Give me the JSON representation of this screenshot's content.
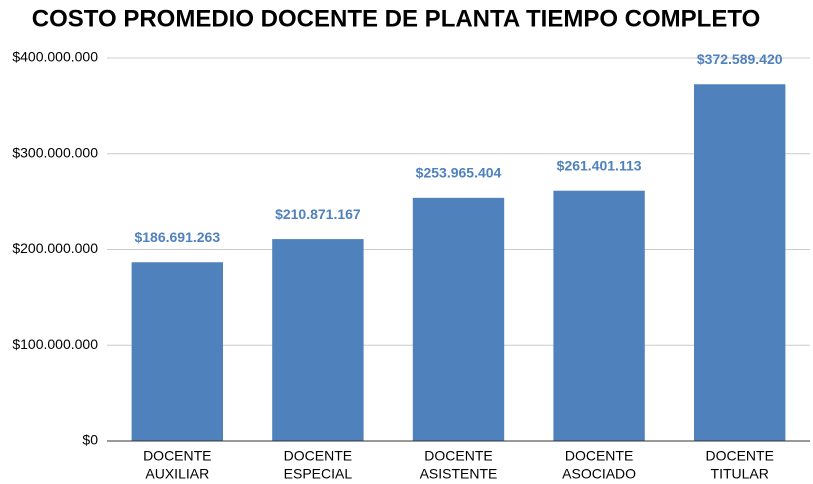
{
  "chart_data": {
    "type": "bar",
    "title": "COSTO PROMEDIO DOCENTE DE PLANTA TIEMPO COMPLETO",
    "categories": [
      [
        "DOCENTE",
        "AUXILIAR"
      ],
      [
        "DOCENTE",
        "ESPECIAL"
      ],
      [
        "DOCENTE",
        "ASISTENTE"
      ],
      [
        "DOCENTE",
        "ASOCIADO"
      ],
      [
        "DOCENTE",
        "TITULAR"
      ]
    ],
    "values": [
      186691263,
      210871167,
      253965404,
      261401113,
      372589420
    ],
    "value_labels": [
      "$186.691.263",
      "$210.871.167",
      "$253.965.404",
      "$261.401.113",
      "$372.589.420"
    ],
    "color": "#4f81bd",
    "ylim": [
      0,
      400000000
    ],
    "yticks": [
      {
        "value": 0,
        "label": "$0"
      },
      {
        "value": 100000000,
        "label": "$100.000.000"
      },
      {
        "value": 200000000,
        "label": "$200.000.000"
      },
      {
        "value": 300000000,
        "label": "$300.000.000"
      },
      {
        "value": 400000000,
        "label": "$400.000.000"
      }
    ],
    "grid": true
  }
}
